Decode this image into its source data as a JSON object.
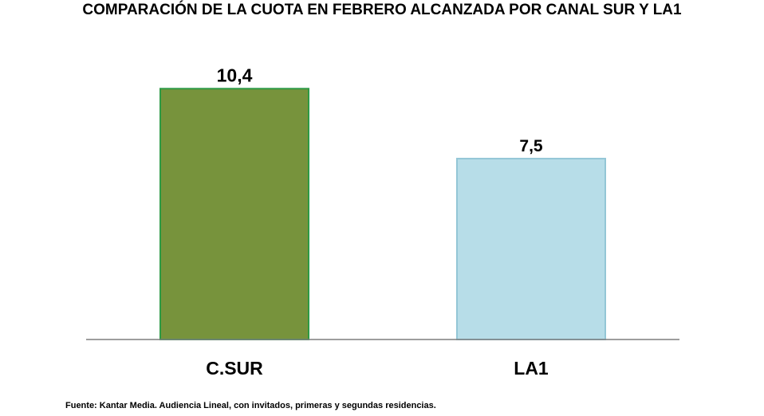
{
  "chart_data": {
    "type": "bar",
    "title": "COMPARACIÓN DE LA CUOTA EN FEBRERO ALCANZADA POR CANAL SUR Y LA1",
    "categories": [
      "C.SUR",
      "LA1"
    ],
    "values": [
      10.4,
      7.5
    ],
    "value_labels": [
      "10,4",
      "7,5"
    ],
    "xlabel": "",
    "ylabel": "",
    "ylim": [
      0,
      11.5
    ],
    "grid": false,
    "legend": "none",
    "colors": {
      "fills": [
        "#77933c",
        "#b7dde8"
      ],
      "strokes": [
        "#2e9a45",
        "#93c6d6"
      ],
      "axis": "#7f7f7f"
    },
    "source": "Fuente: Kantar Media. Audiencia Lineal, con invitados, primeras y segundas residencias."
  }
}
